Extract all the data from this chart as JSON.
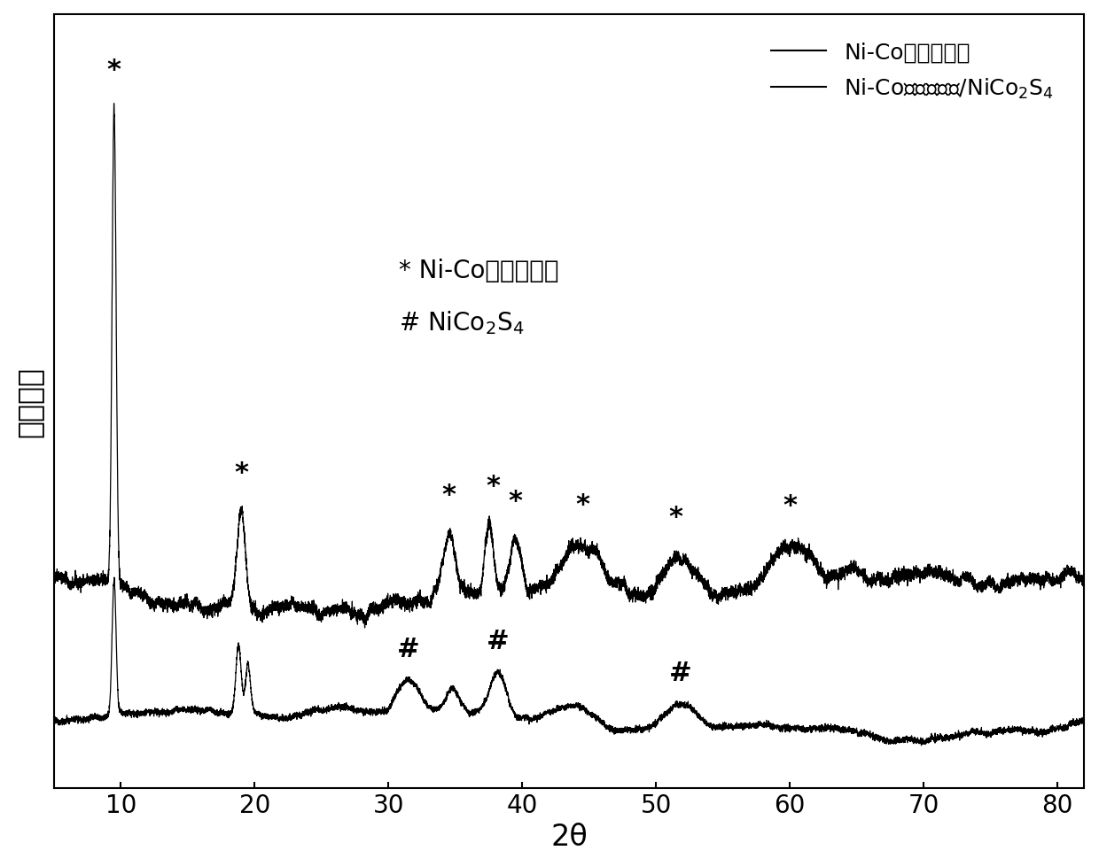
{
  "xlabel": "2θ",
  "ylabel": "相对强度",
  "xlim": [
    5,
    82
  ],
  "xticks": [
    10,
    20,
    30,
    40,
    50,
    60,
    70,
    80
  ],
  "background_color": "#ffffff",
  "line_color": "#000000",
  "legend_label1": "Ni-Co双氢氧化物",
  "legend_label2": "Ni-Co双氢氧化物/NiCo$_2$S$_4$",
  "annot_star_label": "* Ni-Co双氢氧化物",
  "annot_hash_label": "# NiCo$_2$S$_4$",
  "fontsize_axis_label": 24,
  "fontsize_tick": 20,
  "fontsize_legend": 18,
  "fontsize_annotation": 20,
  "fontsize_star_marker": 22
}
